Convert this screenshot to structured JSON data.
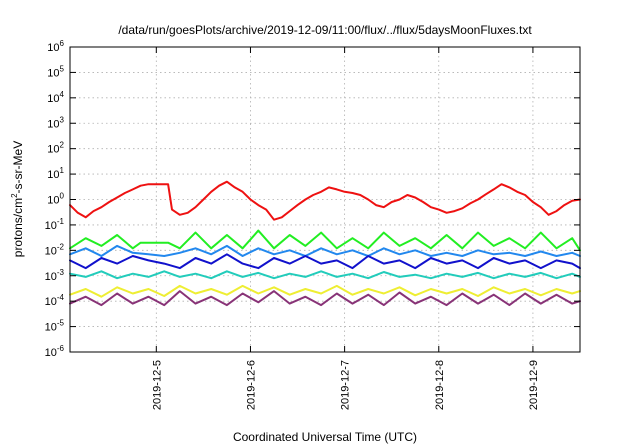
{
  "chart_data": {
    "type": "line",
    "title": "/data/run/goesPlots/archive/2019-12-09/11:00/flux/../flux/5daysMoonFluxes.txt",
    "xlabel": "Coordinated Universal Time (UTC)",
    "ylabel": "protons/cm2-s-sr-MeV",
    "ylabel_parts": {
      "pre": "protons/cm",
      "sup": "2",
      "post": "-s-sr-MeV"
    },
    "yscale": "log",
    "ylim": [
      1e-06,
      1000000.0
    ],
    "xlim": [
      "2019-12-04 02:00",
      "2019-12-09 12:00"
    ],
    "grid": true,
    "legend": "none",
    "y_ticks": [
      {
        "value": 1e-06,
        "base": "10",
        "exp": "-6"
      },
      {
        "value": 1e-05,
        "base": "10",
        "exp": "-5"
      },
      {
        "value": 0.0001,
        "base": "10",
        "exp": "-4"
      },
      {
        "value": 0.001,
        "base": "10",
        "exp": "-3"
      },
      {
        "value": 0.01,
        "base": "10",
        "exp": "-2"
      },
      {
        "value": 0.1,
        "base": "10",
        "exp": "-1"
      },
      {
        "value": 1,
        "base": "10",
        "exp": "0"
      },
      {
        "value": 10,
        "base": "10",
        "exp": "1"
      },
      {
        "value": 100,
        "base": "10",
        "exp": "2"
      },
      {
        "value": 1000,
        "base": "10",
        "exp": "3"
      },
      {
        "value": 10000,
        "base": "10",
        "exp": "4"
      },
      {
        "value": 100000,
        "base": "10",
        "exp": "5"
      },
      {
        "value": 1000000,
        "base": "10",
        "exp": "6"
      }
    ],
    "x_ticks": [
      "2019-12-5",
      "2019-12-6",
      "2019-12-7",
      "2019-12-8",
      "2019-12-9"
    ],
    "series": [
      {
        "color": "#ee1111",
        "x": [
          "2019-12-04 02:00",
          "2019-12-04 04:00",
          "2019-12-04 06:00",
          "2019-12-04 08:00",
          "2019-12-04 10:00",
          "2019-12-04 12:00",
          "2019-12-04 14:00",
          "2019-12-04 16:00",
          "2019-12-04 18:00",
          "2019-12-04 20:00",
          "2019-12-04 22:00",
          "2019-12-05 00:00",
          "2019-12-05 02:00",
          "2019-12-05 03:00",
          "2019-12-05 04:00",
          "2019-12-05 06:00",
          "2019-12-05 08:00",
          "2019-12-05 10:00",
          "2019-12-05 12:00",
          "2019-12-05 14:00",
          "2019-12-05 16:00",
          "2019-12-05 18:00",
          "2019-12-05 20:00",
          "2019-12-05 22:00",
          "2019-12-06 00:00",
          "2019-12-06 02:00",
          "2019-12-06 04:00",
          "2019-12-06 06:00",
          "2019-12-06 08:00",
          "2019-12-06 10:00",
          "2019-12-06 12:00",
          "2019-12-06 14:00",
          "2019-12-06 16:00",
          "2019-12-06 18:00",
          "2019-12-06 20:00",
          "2019-12-06 22:00",
          "2019-12-07 00:00",
          "2019-12-07 02:00",
          "2019-12-07 04:00",
          "2019-12-07 06:00",
          "2019-12-07 08:00",
          "2019-12-07 10:00",
          "2019-12-07 12:00",
          "2019-12-07 14:00",
          "2019-12-07 16:00",
          "2019-12-07 18:00",
          "2019-12-07 20:00",
          "2019-12-07 22:00",
          "2019-12-08 00:00",
          "2019-12-08 02:00",
          "2019-12-08 04:00",
          "2019-12-08 06:00",
          "2019-12-08 08:00",
          "2019-12-08 10:00",
          "2019-12-08 12:00",
          "2019-12-08 14:00",
          "2019-12-08 16:00",
          "2019-12-08 18:00",
          "2019-12-08 20:00",
          "2019-12-08 22:00",
          "2019-12-09 00:00",
          "2019-12-09 02:00",
          "2019-12-09 04:00",
          "2019-12-09 06:00",
          "2019-12-09 08:00",
          "2019-12-09 10:00",
          "2019-12-09 12:00"
        ],
        "y": [
          0.6,
          0.3,
          0.2,
          0.35,
          0.5,
          0.8,
          1.2,
          1.8,
          2.5,
          3.5,
          4.0,
          4.0,
          4.0,
          4.0,
          0.4,
          0.25,
          0.3,
          0.5,
          1.0,
          2.0,
          3.5,
          5.0,
          3.0,
          2.0,
          1.0,
          0.6,
          0.4,
          0.16,
          0.2,
          0.35,
          0.6,
          1.0,
          1.5,
          2.0,
          3.0,
          2.5,
          2.0,
          1.8,
          1.5,
          1.0,
          0.6,
          0.5,
          0.8,
          1.0,
          1.5,
          1.2,
          0.8,
          0.5,
          0.4,
          0.3,
          0.35,
          0.45,
          0.7,
          1.0,
          1.6,
          2.5,
          4.0,
          3.0,
          2.0,
          1.5,
          0.8,
          0.5,
          0.25,
          0.35,
          0.6,
          0.9,
          1.0
        ]
      },
      {
        "color": "#22ee22",
        "x": [
          "2019-12-04 02:00",
          "2019-12-04 06:00",
          "2019-12-04 10:00",
          "2019-12-04 14:00",
          "2019-12-04 18:00",
          "2019-12-04 20:00",
          "2019-12-04 22:00",
          "2019-12-05 03:00",
          "2019-12-05 06:00",
          "2019-12-05 10:00",
          "2019-12-05 14:00",
          "2019-12-05 18:00",
          "2019-12-05 22:00",
          "2019-12-06 02:00",
          "2019-12-06 06:00",
          "2019-12-06 10:00",
          "2019-12-06 14:00",
          "2019-12-06 18:00",
          "2019-12-06 22:00",
          "2019-12-07 02:00",
          "2019-12-07 06:00",
          "2019-12-07 10:00",
          "2019-12-07 14:00",
          "2019-12-07 18:00",
          "2019-12-07 22:00",
          "2019-12-08 02:00",
          "2019-12-08 06:00",
          "2019-12-08 10:00",
          "2019-12-08 14:00",
          "2019-12-08 18:00",
          "2019-12-08 22:00",
          "2019-12-09 02:00",
          "2019-12-09 06:00",
          "2019-12-09 10:00",
          "2019-12-09 12:00"
        ],
        "y": [
          0.012,
          0.03,
          0.015,
          0.04,
          0.012,
          0.02,
          0.02,
          0.02,
          0.012,
          0.05,
          0.012,
          0.04,
          0.012,
          0.06,
          0.012,
          0.04,
          0.015,
          0.05,
          0.012,
          0.03,
          0.012,
          0.05,
          0.015,
          0.03,
          0.012,
          0.04,
          0.012,
          0.05,
          0.015,
          0.03,
          0.012,
          0.05,
          0.012,
          0.03,
          0.01
        ]
      },
      {
        "color": "#2288ee",
        "x": [
          "2019-12-04 02:00",
          "2019-12-04 06:00",
          "2019-12-04 10:00",
          "2019-12-04 14:00",
          "2019-12-04 18:00",
          "2019-12-04 22:00",
          "2019-12-05 02:00",
          "2019-12-05 06:00",
          "2019-12-05 10:00",
          "2019-12-05 14:00",
          "2019-12-05 18:00",
          "2019-12-05 22:00",
          "2019-12-06 02:00",
          "2019-12-06 06:00",
          "2019-12-06 10:00",
          "2019-12-06 14:00",
          "2019-12-06 18:00",
          "2019-12-06 22:00",
          "2019-12-07 02:00",
          "2019-12-07 06:00",
          "2019-12-07 10:00",
          "2019-12-07 14:00",
          "2019-12-07 18:00",
          "2019-12-07 22:00",
          "2019-12-08 02:00",
          "2019-12-08 06:00",
          "2019-12-08 10:00",
          "2019-12-08 14:00",
          "2019-12-08 18:00",
          "2019-12-08 22:00",
          "2019-12-09 02:00",
          "2019-12-09 06:00",
          "2019-12-09 10:00",
          "2019-12-09 12:00"
        ],
        "y": [
          0.007,
          0.012,
          0.006,
          0.015,
          0.008,
          0.007,
          0.006,
          0.008,
          0.012,
          0.007,
          0.015,
          0.006,
          0.012,
          0.007,
          0.01,
          0.006,
          0.012,
          0.007,
          0.01,
          0.006,
          0.012,
          0.007,
          0.01,
          0.006,
          0.008,
          0.006,
          0.01,
          0.007,
          0.008,
          0.006,
          0.009,
          0.006,
          0.008,
          0.006
        ]
      },
      {
        "color": "#1111cc",
        "x": [
          "2019-12-04 02:00",
          "2019-12-04 06:00",
          "2019-12-04 10:00",
          "2019-12-04 14:00",
          "2019-12-04 18:00",
          "2019-12-04 22:00",
          "2019-12-05 02:00",
          "2019-12-05 06:00",
          "2019-12-05 10:00",
          "2019-12-05 14:00",
          "2019-12-05 18:00",
          "2019-12-05 22:00",
          "2019-12-06 02:00",
          "2019-12-06 06:00",
          "2019-12-06 10:00",
          "2019-12-06 14:00",
          "2019-12-06 18:00",
          "2019-12-06 22:00",
          "2019-12-07 02:00",
          "2019-12-07 06:00",
          "2019-12-07 10:00",
          "2019-12-07 14:00",
          "2019-12-07 18:00",
          "2019-12-07 22:00",
          "2019-12-08 02:00",
          "2019-12-08 06:00",
          "2019-12-08 10:00",
          "2019-12-08 14:00",
          "2019-12-08 18:00",
          "2019-12-08 22:00",
          "2019-12-09 02:00",
          "2019-12-09 06:00",
          "2019-12-09 10:00",
          "2019-12-09 12:00"
        ],
        "y": [
          0.004,
          0.002,
          0.005,
          0.003,
          0.006,
          0.004,
          0.003,
          0.002,
          0.005,
          0.003,
          0.007,
          0.003,
          0.002,
          0.005,
          0.003,
          0.006,
          0.003,
          0.004,
          0.002,
          0.006,
          0.003,
          0.004,
          0.002,
          0.005,
          0.003,
          0.004,
          0.002,
          0.005,
          0.003,
          0.004,
          0.002,
          0.004,
          0.003,
          0.002
        ]
      },
      {
        "color": "#22ccbb",
        "x": [
          "2019-12-04 02:00",
          "2019-12-04 06:00",
          "2019-12-04 10:00",
          "2019-12-04 14:00",
          "2019-12-04 18:00",
          "2019-12-04 22:00",
          "2019-12-05 02:00",
          "2019-12-05 06:00",
          "2019-12-05 10:00",
          "2019-12-05 14:00",
          "2019-12-05 18:00",
          "2019-12-05 22:00",
          "2019-12-06 02:00",
          "2019-12-06 06:00",
          "2019-12-06 10:00",
          "2019-12-06 14:00",
          "2019-12-06 18:00",
          "2019-12-06 22:00",
          "2019-12-07 02:00",
          "2019-12-07 06:00",
          "2019-12-07 10:00",
          "2019-12-07 14:00",
          "2019-12-07 18:00",
          "2019-12-07 22:00",
          "2019-12-08 02:00",
          "2019-12-08 06:00",
          "2019-12-08 10:00",
          "2019-12-08 14:00",
          "2019-12-08 18:00",
          "2019-12-08 22:00",
          "2019-12-09 02:00",
          "2019-12-09 06:00",
          "2019-12-09 10:00",
          "2019-12-09 12:00"
        ],
        "y": [
          0.0012,
          0.0009,
          0.0015,
          0.0008,
          0.0012,
          0.0009,
          0.0015,
          0.0009,
          0.0012,
          0.0008,
          0.0015,
          0.0009,
          0.0013,
          0.0008,
          0.0012,
          0.0009,
          0.0015,
          0.0009,
          0.0012,
          0.0008,
          0.0014,
          0.0009,
          0.0011,
          0.0008,
          0.0012,
          0.0009,
          0.0013,
          0.0008,
          0.0012,
          0.0009,
          0.0013,
          0.0008,
          0.0012,
          0.0009
        ]
      },
      {
        "color": "#eeee33",
        "x": [
          "2019-12-04 02:00",
          "2019-12-04 06:00",
          "2019-12-04 10:00",
          "2019-12-04 14:00",
          "2019-12-04 18:00",
          "2019-12-04 22:00",
          "2019-12-05 02:00",
          "2019-12-05 06:00",
          "2019-12-05 10:00",
          "2019-12-05 14:00",
          "2019-12-05 18:00",
          "2019-12-05 22:00",
          "2019-12-06 02:00",
          "2019-12-06 06:00",
          "2019-12-06 10:00",
          "2019-12-06 14:00",
          "2019-12-06 18:00",
          "2019-12-06 22:00",
          "2019-12-07 02:00",
          "2019-12-07 06:00",
          "2019-12-07 10:00",
          "2019-12-07 14:00",
          "2019-12-07 18:00",
          "2019-12-07 22:00",
          "2019-12-08 02:00",
          "2019-12-08 06:00",
          "2019-12-08 10:00",
          "2019-12-08 14:00",
          "2019-12-08 18:00",
          "2019-12-08 22:00",
          "2019-12-09 02:00",
          "2019-12-09 06:00",
          "2019-12-09 10:00",
          "2019-12-09 12:00"
        ],
        "y": [
          0.00018,
          0.0003,
          0.00015,
          0.00035,
          0.0002,
          0.0003,
          0.00016,
          0.0004,
          0.0002,
          0.0003,
          0.00018,
          0.0004,
          0.0002,
          0.00035,
          0.00018,
          0.0003,
          0.0002,
          0.0004,
          0.00018,
          0.0003,
          0.0002,
          0.00035,
          0.00017,
          0.0003,
          0.0002,
          0.0003,
          0.00016,
          0.00035,
          0.0002,
          0.0003,
          0.00017,
          0.0003,
          0.0002,
          0.00025
        ]
      },
      {
        "color": "#883377",
        "x": [
          "2019-12-04 02:00",
          "2019-12-04 06:00",
          "2019-12-04 10:00",
          "2019-12-04 14:00",
          "2019-12-04 18:00",
          "2019-12-04 22:00",
          "2019-12-05 02:00",
          "2019-12-05 06:00",
          "2019-12-05 10:00",
          "2019-12-05 14:00",
          "2019-12-05 18:00",
          "2019-12-05 22:00",
          "2019-12-06 02:00",
          "2019-12-06 06:00",
          "2019-12-06 10:00",
          "2019-12-06 14:00",
          "2019-12-06 18:00",
          "2019-12-06 22:00",
          "2019-12-07 02:00",
          "2019-12-07 06:00",
          "2019-12-07 10:00",
          "2019-12-07 14:00",
          "2019-12-07 18:00",
          "2019-12-07 22:00",
          "2019-12-08 02:00",
          "2019-12-08 06:00",
          "2019-12-08 10:00",
          "2019-12-08 14:00",
          "2019-12-08 18:00",
          "2019-12-08 22:00",
          "2019-12-09 02:00",
          "2019-12-09 06:00",
          "2019-12-09 10:00",
          "2019-12-09 12:00"
        ],
        "y": [
          8e-05,
          0.00015,
          7e-05,
          0.0002,
          8e-05,
          0.00015,
          7e-05,
          0.00025,
          8e-05,
          0.00015,
          7e-05,
          0.0002,
          9e-05,
          0.00025,
          8e-05,
          0.00015,
          7e-05,
          0.0002,
          8e-05,
          0.00018,
          7e-05,
          0.00022,
          8e-05,
          0.00015,
          7e-05,
          0.0002,
          8e-05,
          0.00018,
          7e-05,
          0.0002,
          8e-05,
          0.00018,
          8e-05,
          0.0001
        ]
      }
    ]
  }
}
